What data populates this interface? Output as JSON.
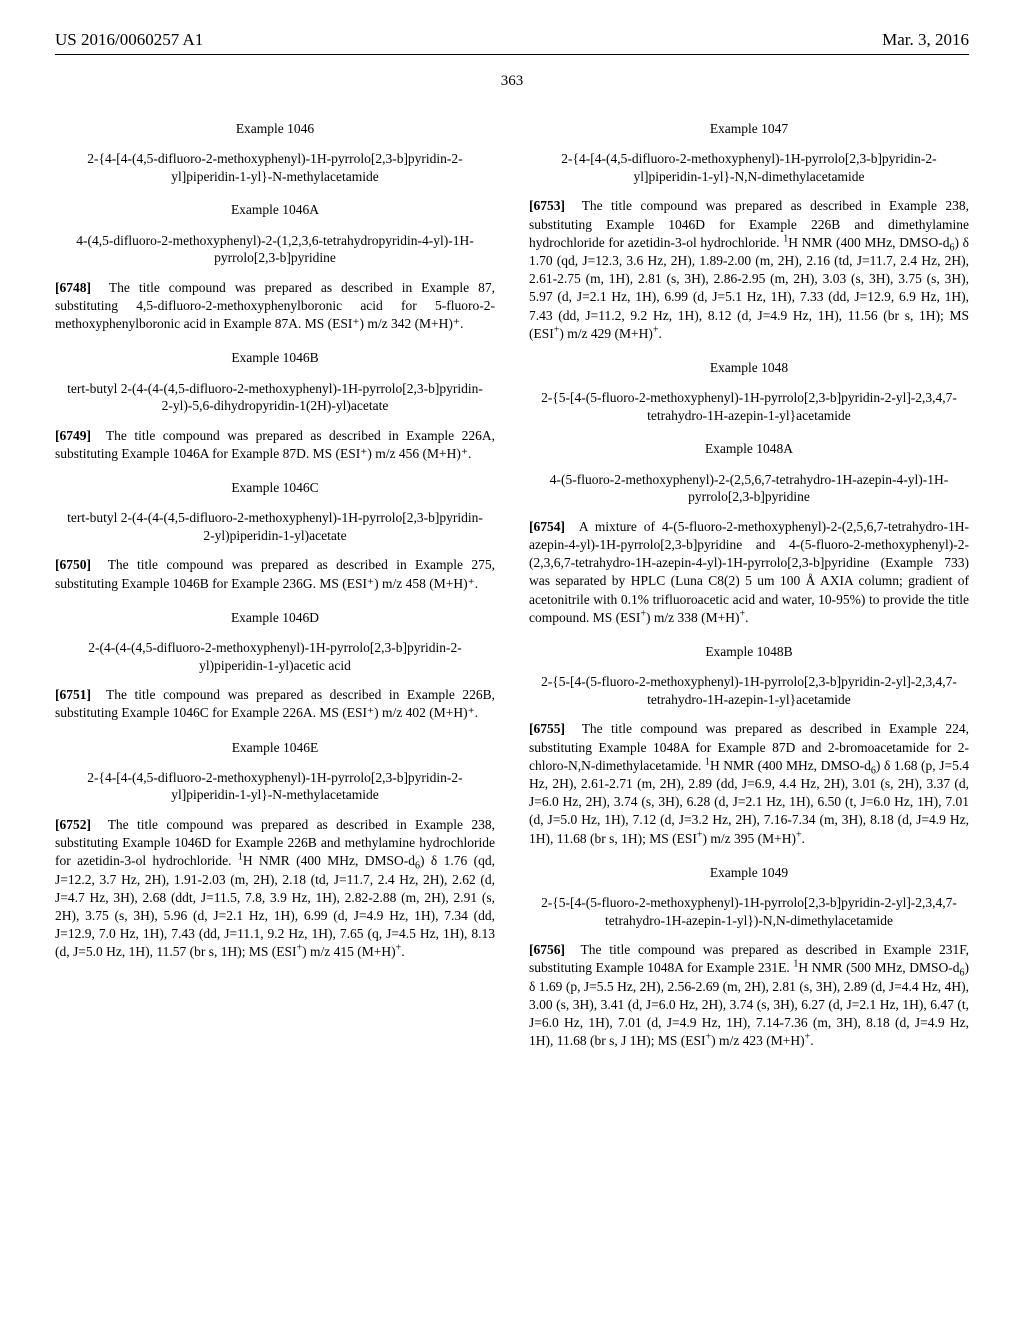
{
  "header": {
    "pub_number": "US 2016/0060257 A1",
    "pub_date": "Mar. 3, 2016"
  },
  "page_number": "363",
  "left_column": {
    "ex1046": {
      "heading": "Example 1046",
      "title": "2-{4-[4-(4,5-difluoro-2-methoxyphenyl)-1H-pyrrolo[2,3-b]pyridin-2-yl]piperidin-1-yl}-N-methylacetamide"
    },
    "ex1046a": {
      "heading": "Example 1046A",
      "title": "4-(4,5-difluoro-2-methoxyphenyl)-2-(1,2,3,6-tetrahydropyridin-4-yl)-1H-pyrrolo[2,3-b]pyridine",
      "pnum": "[6748]",
      "body": "The title compound was prepared as described in Example 87, substituting 4,5-difluoro-2-methoxyphenylboronic acid for 5-fluoro-2-methoxyphenylboronic acid in Example 87A. MS (ESI⁺) m/z 342 (M+H)⁺."
    },
    "ex1046b": {
      "heading": "Example 1046B",
      "title": "tert-butyl 2-(4-(4-(4,5-difluoro-2-methoxyphenyl)-1H-pyrrolo[2,3-b]pyridin-2-yl)-5,6-dihydropyridin-1(2H)-yl)acetate",
      "pnum": "[6749]",
      "body": "The title compound was prepared as described in Example 226A, substituting Example 1046A for Example 87D. MS (ESI⁺) m/z 456 (M+H)⁺."
    },
    "ex1046c": {
      "heading": "Example 1046C",
      "title": "tert-butyl 2-(4-(4-(4,5-difluoro-2-methoxyphenyl)-1H-pyrrolo[2,3-b]pyridin-2-yl)piperidin-1-yl)acetate",
      "pnum": "[6750]",
      "body": "The title compound was prepared as described in Example 275, substituting Example 1046B for Example 236G. MS (ESI⁺) m/z 458 (M+H)⁺."
    },
    "ex1046d": {
      "heading": "Example 1046D",
      "title": "2-(4-(4-(4,5-difluoro-2-methoxyphenyl)-1H-pyrrolo[2,3-b]pyridin-2-yl)piperidin-1-yl)acetic acid",
      "pnum": "[6751]",
      "body": "The title compound was prepared as described in Example 226B, substituting Example 1046C for Example 226A. MS (ESI⁺) m/z 402 (M+H)⁺."
    },
    "ex1046e": {
      "heading": "Example 1046E",
      "title": "2-{4-[4-(4,5-difluoro-2-methoxyphenyl)-1H-pyrrolo[2,3-b]pyridin-2-yl]piperidin-1-yl}-N-methylacetamide",
      "pnum": "[6752]",
      "body_html": "The title compound was prepared as described in Example 238, substituting Example 1046D for Example 226B and methylamine hydrochloride for azetidin-3-ol hydrochloride. <sup>1</sup>H NMR (400 MHz, DMSO-d<sub>6</sub>) δ 1.76 (qd, J=12.2, 3.7 Hz, 2H), 1.91-2.03 (m, 2H), 2.18 (td, J=11.7, 2.4 Hz, 2H), 2.62 (d, J=4.7 Hz, 3H), 2.68 (ddt, J=11.5, 7.8, 3.9 Hz, 1H), 2.82-2.88 (m, 2H), 2.91 (s, 2H), 3.75 (s, 3H), 5.96 (d, J=2.1 Hz, 1H), 6.99 (d, J=4.9 Hz, 1H), 7.34 (dd, J=12.9, 7.0 Hz, 1H), 7.43 (dd, J=11.1, 9.2 Hz, 1H), 7.65 (q, J=4.5 Hz, 1H), 8.13 (d, J=5.0 Hz, 1H), 11.57 (br s, 1H); MS (ESI<sup>+</sup>) m/z 415 (M+H)<sup>+</sup>."
    }
  },
  "right_column": {
    "ex1047": {
      "heading": "Example 1047",
      "title": "2-{4-[4-(4,5-difluoro-2-methoxyphenyl)-1H-pyrrolo[2,3-b]pyridin-2-yl]piperidin-1-yl}-N,N-dimethylacetamide",
      "pnum": "[6753]",
      "body_html": "The title compound was prepared as described in Example 238, substituting Example 1046D for Example 226B and dimethylamine hydrochloride for azetidin-3-ol hydrochloride. <sup>1</sup>H NMR (400 MHz, DMSO-d<sub>6</sub>) δ 1.70 (qd, J=12.3, 3.6 Hz, 2H), 1.89-2.00 (m, 2H), 2.16 (td, J=11.7, 2.4 Hz, 2H), 2.61-2.75 (m, 1H), 2.81 (s, 3H), 2.86-2.95 (m, 2H), 3.03 (s, 3H), 3.75 (s, 3H), 5.97 (d, J=2.1 Hz, 1H), 6.99 (d, J=5.1 Hz, 1H), 7.33 (dd, J=12.9, 6.9 Hz, 1H), 7.43 (dd, J=11.2, 9.2 Hz, 1H), 8.12 (d, J=4.9 Hz, 1H), 11.56 (br s, 1H); MS (ESI<sup>+</sup>) m/z 429 (M+H)<sup>+</sup>."
    },
    "ex1048": {
      "heading": "Example 1048",
      "title": "2-{5-[4-(5-fluoro-2-methoxyphenyl)-1H-pyrrolo[2,3-b]pyridin-2-yl]-2,3,4,7-tetrahydro-1H-azepin-1-yl}acetamide"
    },
    "ex1048a": {
      "heading": "Example 1048A",
      "title": "4-(5-fluoro-2-methoxyphenyl)-2-(2,5,6,7-tetrahydro-1H-azepin-4-yl)-1H-pyrrolo[2,3-b]pyridine",
      "pnum": "[6754]",
      "body_html": "A mixture of 4-(5-fluoro-2-methoxyphenyl)-2-(2,5,6,7-tetrahydro-1H-azepin-4-yl)-1H-pyrrolo[2,3-b]pyridine and 4-(5-fluoro-2-methoxyphenyl)-2-(2,3,6,7-tetrahydro-1H-azepin-4-yl)-1H-pyrrolo[2,3-b]pyridine (Example 733) was separated by HPLC (Luna C8(2) 5 um 100 Å AXIA column; gradient of acetonitrile with 0.1% trifluoroacetic acid and water, 10-95%) to provide the title compound. MS (ESI<sup>+</sup>) m/z 338 (M+H)<sup>+</sup>."
    },
    "ex1048b": {
      "heading": "Example 1048B",
      "title": "2-{5-[4-(5-fluoro-2-methoxyphenyl)-1H-pyrrolo[2,3-b]pyridin-2-yl]-2,3,4,7-tetrahydro-1H-azepin-1-yl}acetamide",
      "pnum": "[6755]",
      "body_html": "The title compound was prepared as described in Example 224, substituting Example 1048A for Example 87D and 2-bromoacetamide for 2-chloro-N,N-dimethylacetamide. <sup>1</sup>H NMR (400 MHz, DMSO-d<sub>6</sub>) δ 1.68 (p, J=5.4 Hz, 2H), 2.61-2.71 (m, 2H), 2.89 (dd, J=6.9, 4.4 Hz, 2H), 3.01 (s, 2H), 3.37 (d, J=6.0 Hz, 2H), 3.74 (s, 3H), 6.28 (d, J=2.1 Hz, 1H), 6.50 (t, J=6.0 Hz, 1H), 7.01 (d, J=5.0 Hz, 1H), 7.12 (d, J=3.2 Hz, 2H), 7.16-7.34 (m, 3H), 8.18 (d, J=4.9 Hz, 1H), 11.68 (br s, 1H); MS (ESI<sup>+</sup>) m/z 395 (M+H)<sup>+</sup>."
    },
    "ex1049": {
      "heading": "Example 1049",
      "title": "2-{5-[4-(5-fluoro-2-methoxyphenyl)-1H-pyrrolo[2,3-b]pyridin-2-yl]-2,3,4,7-tetrahydro-1H-azepin-1-yl})-N,N-dimethylacetamide",
      "pnum": "[6756]",
      "body_html": "The title compound was prepared as described in Example 231F, substituting Example 1048A for Example 231E. <sup>1</sup>H NMR (500 MHz, DMSO-d<sub>6</sub>) δ 1.69 (p, J=5.5 Hz, 2H), 2.56-2.69 (m, 2H), 2.81 (s, 3H), 2.89 (d, J=4.4 Hz, 4H), 3.00 (s, 3H), 3.41 (d, J=6.0 Hz, 2H), 3.74 (s, 3H), 6.27 (d, J=2.1 Hz, 1H), 6.47 (t, J=6.0 Hz, 1H), 7.01 (d, J=4.9 Hz, 1H), 7.14-7.36 (m, 3H), 8.18 (d, J=4.9 Hz, 1H), 11.68 (br s, J 1H); MS (ESI<sup>+</sup>) m/z 423 (M+H)<sup>+</sup>."
    }
  }
}
